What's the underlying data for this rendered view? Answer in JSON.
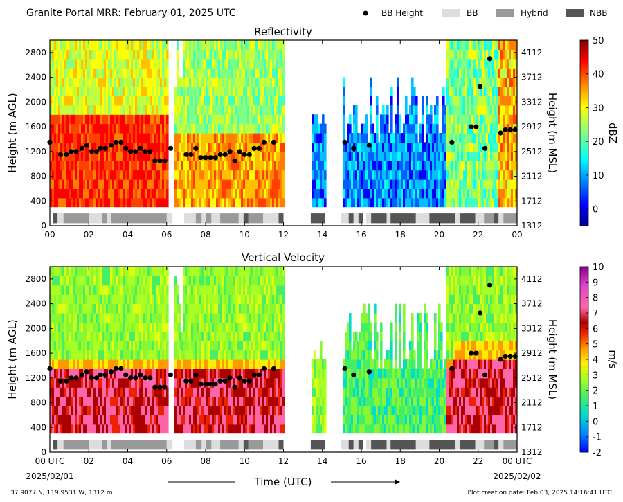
{
  "header": {
    "title": "Granite Portal MRR:  February 01, 2025 UTC",
    "legend": [
      {
        "label": "BB Height",
        "kind": "dot",
        "color": "#000000"
      },
      {
        "label": "BB",
        "kind": "box",
        "color": "#dddddd"
      },
      {
        "label": "Hybrid",
        "kind": "box",
        "color": "#999999"
      },
      {
        "label": "NBB",
        "kind": "box",
        "color": "#555555"
      }
    ]
  },
  "footer": {
    "location": "37.9077 N, 119.9531 W, 1312 m",
    "creation": "Plot creation date: Feb 03, 2025 14:16:41 UTC",
    "xlabel": "Time (UTC)",
    "start_date": "2025/02/01",
    "end_date": "2025/02/02"
  },
  "chart_data": [
    {
      "type": "heatmap",
      "title": "Reflectivity",
      "ylabel": "Height (m AGL)",
      "ylabel_right": "Height (m MSL)",
      "colorbar_label": "dBZ",
      "colorbar_ticks": [
        "50",
        "40",
        "30",
        "20",
        "10",
        "0"
      ],
      "colorbar_range": [
        -5,
        50
      ],
      "colormap": "jet",
      "xlim": [
        0,
        24
      ],
      "ylim": [
        0,
        3000
      ],
      "x_ticks": [
        "00",
        "02",
        "04",
        "06",
        "08",
        "10",
        "12",
        "14",
        "16",
        "18",
        "20",
        "22",
        "00"
      ],
      "y_ticks": [
        "0",
        "400",
        "800",
        "1200",
        "1600",
        "2000",
        "2400",
        "2800"
      ],
      "y_ticks_right": [
        "1312",
        "1712",
        "2112",
        "2512",
        "2912",
        "3312",
        "3712",
        "4112"
      ],
      "data_gaps_hours": [
        [
          6.05,
          6.4
        ],
        [
          12.0,
          13.35
        ],
        [
          14.1,
          15.0
        ]
      ],
      "data_segments": [
        {
          "start": 0.0,
          "end": 6.05,
          "level": 15
        },
        {
          "start": 6.4,
          "end": 12.0,
          "level": 12
        },
        {
          "start": 13.35,
          "end": 14.1,
          "level": 5
        },
        {
          "start": 15.0,
          "end": 20.3,
          "level": 6
        },
        {
          "start": 20.3,
          "end": 24.0,
          "level": 18
        }
      ]
    },
    {
      "type": "heatmap",
      "title": "Vertical Velocity",
      "ylabel": "Height (m AGL)",
      "ylabel_right": "Height (m MSL)",
      "colorbar_label": "m/s",
      "colorbar_ticks": [
        "10",
        "9",
        "8",
        "7",
        "6",
        "5",
        "4",
        "3",
        "2",
        "1",
        "0",
        "-1",
        "-2"
      ],
      "colorbar_range": [
        -2,
        10
      ],
      "colormap": "velocity",
      "xlim": [
        0,
        24
      ],
      "ylim": [
        0,
        3000
      ],
      "x_ticks": [
        "00 UTC",
        "02",
        "04",
        "06",
        "08",
        "10",
        "12",
        "14",
        "16",
        "18",
        "20",
        "22",
        "00 UTC"
      ],
      "y_ticks": [
        "0",
        "400",
        "800",
        "1200",
        "1600",
        "2000",
        "2400",
        "2800"
      ],
      "y_ticks_right": [
        "1312",
        "1712",
        "2112",
        "2512",
        "2912",
        "3312",
        "3712",
        "4112"
      ],
      "data_gaps_hours": [
        [
          6.05,
          6.4
        ],
        [
          12.0,
          13.35
        ],
        [
          14.1,
          15.0
        ]
      ]
    }
  ],
  "bb_height": {
    "x": [
      0.0,
      0.55,
      0.85,
      1.1,
      1.35,
      1.65,
      1.9,
      2.15,
      2.4,
      2.6,
      2.85,
      3.15,
      3.4,
      3.65,
      3.9,
      4.15,
      4.4,
      4.65,
      4.9,
      5.15,
      5.4,
      5.65,
      5.9,
      6.2,
      7.0,
      7.25,
      7.5,
      7.75,
      8.0,
      8.25,
      8.5,
      8.75,
      9.0,
      9.25,
      9.5,
      9.75,
      10.0,
      10.25,
      10.5,
      10.75,
      11.0,
      11.5,
      15.15,
      15.6,
      16.4,
      20.65,
      21.65,
      21.9,
      22.1,
      22.35,
      22.6,
      23.15,
      23.4,
      23.65,
      23.9
    ],
    "y": [
      1350,
      1150,
      1150,
      1200,
      1200,
      1250,
      1300,
      1200,
      1200,
      1250,
      1250,
      1300,
      1350,
      1350,
      1250,
      1200,
      1200,
      1250,
      1200,
      1200,
      1050,
      1050,
      1050,
      1250,
      1150,
      1150,
      1250,
      1100,
      1100,
      1100,
      1100,
      1150,
      1150,
      1200,
      1050,
      1200,
      1150,
      1150,
      1250,
      1250,
      1350,
      1350,
      1350,
      1250,
      1300,
      1350,
      1600,
      1600,
      2250,
      1250,
      2700,
      1500,
      1550,
      1550,
      1550
    ]
  },
  "bb_class": [
    {
      "start": 0.15,
      "end": 0.4,
      "cls": "NBB"
    },
    {
      "start": 0.4,
      "end": 0.7,
      "cls": "BB"
    },
    {
      "start": 0.7,
      "end": 2.0,
      "cls": "Hybrid"
    },
    {
      "start": 2.0,
      "end": 2.7,
      "cls": "BB"
    },
    {
      "start": 2.7,
      "end": 2.95,
      "cls": "Hybrid"
    },
    {
      "start": 2.95,
      "end": 3.15,
      "cls": "BB"
    },
    {
      "start": 3.15,
      "end": 6.0,
      "cls": "Hybrid"
    },
    {
      "start": 6.0,
      "end": 6.3,
      "cls": "BB"
    },
    {
      "start": 6.9,
      "end": 7.5,
      "cls": "BB"
    },
    {
      "start": 7.5,
      "end": 7.8,
      "cls": "Hybrid"
    },
    {
      "start": 7.8,
      "end": 8.0,
      "cls": "BB"
    },
    {
      "start": 8.0,
      "end": 8.3,
      "cls": "Hybrid"
    },
    {
      "start": 8.3,
      "end": 8.75,
      "cls": "BB"
    },
    {
      "start": 8.75,
      "end": 9.7,
      "cls": "Hybrid"
    },
    {
      "start": 9.7,
      "end": 9.95,
      "cls": "BB"
    },
    {
      "start": 9.95,
      "end": 10.2,
      "cls": "NBB"
    },
    {
      "start": 10.2,
      "end": 10.95,
      "cls": "Hybrid"
    },
    {
      "start": 10.95,
      "end": 11.45,
      "cls": "BB"
    },
    {
      "start": 11.45,
      "end": 11.75,
      "cls": "BB"
    },
    {
      "start": 11.75,
      "end": 12.0,
      "cls": "NBB"
    },
    {
      "start": 13.4,
      "end": 14.15,
      "cls": "NBB"
    },
    {
      "start": 14.95,
      "end": 15.35,
      "cls": "BB"
    },
    {
      "start": 15.35,
      "end": 15.6,
      "cls": "NBB"
    },
    {
      "start": 15.6,
      "end": 15.85,
      "cls": "BB"
    },
    {
      "start": 15.85,
      "end": 16.1,
      "cls": "NBB"
    },
    {
      "start": 16.25,
      "end": 16.5,
      "cls": "BB"
    },
    {
      "start": 16.5,
      "end": 17.3,
      "cls": "NBB"
    },
    {
      "start": 17.3,
      "end": 17.5,
      "cls": "BB"
    },
    {
      "start": 17.5,
      "end": 18.8,
      "cls": "NBB"
    },
    {
      "start": 18.8,
      "end": 19.5,
      "cls": "BB"
    },
    {
      "start": 19.5,
      "end": 20.8,
      "cls": "NBB"
    },
    {
      "start": 20.8,
      "end": 21.05,
      "cls": "BB"
    },
    {
      "start": 21.05,
      "end": 21.85,
      "cls": "NBB"
    },
    {
      "start": 21.85,
      "end": 22.3,
      "cls": "BB"
    },
    {
      "start": 22.3,
      "end": 22.8,
      "cls": "Hybrid"
    },
    {
      "start": 22.8,
      "end": 23.05,
      "cls": "NBB"
    },
    {
      "start": 23.05,
      "end": 23.3,
      "cls": "BB"
    },
    {
      "start": 23.3,
      "end": 24.0,
      "cls": "Hybrid"
    }
  ],
  "class_colors": {
    "BB": "#dddddd",
    "Hybrid": "#999999",
    "NBB": "#555555"
  }
}
